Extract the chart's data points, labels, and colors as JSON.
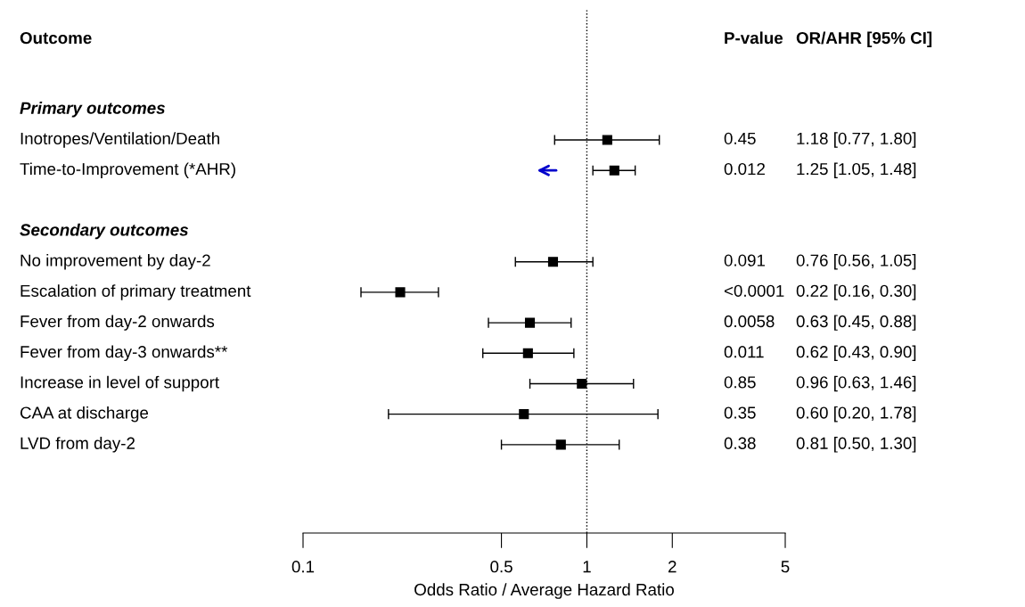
{
  "chart_data": {
    "type": "scatter",
    "orientation": "horizontal",
    "xlabel": "Odds Ratio / Average Hazard Ratio",
    "categories": [
      "Primary outcomes",
      "Inotropes/Ventilation/Death",
      "Time-to-Improvement (*AHR)",
      null,
      "Secondary outcomes",
      "No improvement by day-2",
      "Escalation of primary treatment",
      "Fever from day-2 onwards",
      "Fever from day-3 onwards**",
      "Increase in level of support",
      "CAA at discharge",
      "LVD from day-2"
    ],
    "series": [
      {
        "color": "#000000",
        "values": [
          null,
          1.18,
          1.25,
          null,
          null,
          0.76,
          0.22,
          0.63,
          0.62,
          0.96,
          0.6,
          0.81
        ],
        "errors": [
          null,
          [
            0.77,
            1.8
          ],
          [
            1.05,
            1.48
          ],
          null,
          null,
          [
            0.56,
            1.05
          ],
          [
            0.16,
            0.3
          ],
          [
            0.45,
            0.88
          ],
          [
            0.43,
            0.9
          ],
          [
            0.63,
            1.46
          ],
          [
            0.2,
            1.78
          ],
          [
            0.5,
            1.3
          ]
        ],
        "value_labels": [
          null,
          "1.18 [0.77, 1.80]",
          "1.25 [1.05, 1.48]",
          null,
          null,
          "0.76 [0.56, 1.05]",
          "0.22 [0.16, 0.30]",
          "0.63 [0.45, 0.88]",
          "0.62 [0.43, 0.90]",
          "0.96 [0.63, 1.46]",
          "0.60 [0.20, 1.78]",
          "0.81 [0.50, 1.30]"
        ]
      }
    ],
    "annotations": [
      "Outcome",
      "P-value",
      "OR/AHR [95% CI]",
      "0.45",
      "0.012",
      "0.091",
      "<0.0001",
      "0.0058",
      "0.011",
      "0.85",
      "0.35",
      "0.38"
    ],
    "log": "x",
    "xlim": [
      0.1,
      5
    ],
    "xticks": [
      0.1,
      0.5,
      1,
      2,
      5
    ],
    "ref_lines": [
      {
        "axis": "x",
        "value": 1,
        "line_style": "dotted",
        "color": "#000000"
      }
    ],
    "marker": "square",
    "grid": false
  }
}
